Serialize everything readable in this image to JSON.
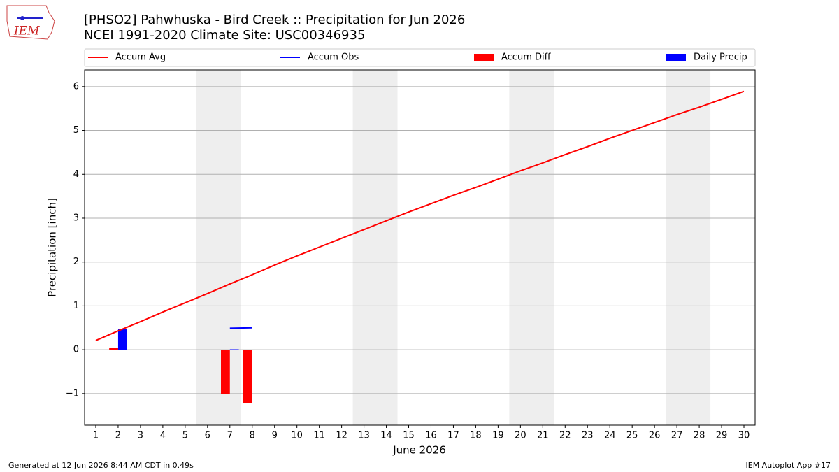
{
  "logo": {
    "text": "IEM"
  },
  "chart_data": {
    "type": "bar",
    "title": "[PHSO2] Pahwhuska - Bird Creek :: Precipitation for Jun 2026",
    "subtitle": "NCEI 1991-2020 Climate Site: USC00346935",
    "y_label": "Precipitation [inch]",
    "x_label": "June 2026",
    "x": [
      1,
      2,
      3,
      4,
      5,
      6,
      7,
      8,
      9,
      10,
      11,
      12,
      13,
      14,
      15,
      16,
      17,
      18,
      19,
      20,
      21,
      22,
      23,
      24,
      25,
      26,
      27,
      28,
      29,
      30
    ],
    "xlim": [
      0.5,
      30.5
    ],
    "xticks": [
      1,
      2,
      3,
      4,
      5,
      6,
      7,
      8,
      9,
      10,
      11,
      12,
      13,
      14,
      15,
      16,
      17,
      18,
      19,
      20,
      21,
      22,
      23,
      24,
      25,
      26,
      27,
      28,
      29,
      30
    ],
    "ylim": [
      -1.72,
      6.38
    ],
    "yticks": [
      {
        "value": -1,
        "label": "−1"
      },
      0,
      1,
      2,
      3,
      4,
      5,
      6
    ],
    "grid": true,
    "weekend_shading": [
      [
        5.5,
        7.5
      ],
      [
        12.5,
        14.5
      ],
      [
        19.5,
        21.5
      ],
      [
        26.5,
        28.5
      ]
    ],
    "series": [
      {
        "name": "Accum Avg",
        "type": "line",
        "color": "#ff0000",
        "values": [
          0.21,
          0.43,
          0.64,
          0.86,
          1.07,
          1.28,
          1.5,
          1.71,
          1.93,
          2.14,
          2.34,
          2.54,
          2.74,
          2.94,
          3.14,
          3.33,
          3.52,
          3.7,
          3.89,
          4.08,
          4.26,
          4.45,
          4.63,
          4.82,
          5.0,
          5.18,
          5.36,
          5.53,
          5.71,
          5.89
        ]
      },
      {
        "name": "Accum Obs",
        "type": "line",
        "color": "#0000ff",
        "values": [
          null,
          null,
          null,
          null,
          null,
          null,
          0.49,
          0.5,
          null,
          null,
          null,
          null,
          null,
          null,
          null,
          null,
          null,
          null,
          null,
          null,
          null,
          null,
          null,
          null,
          null,
          null,
          null,
          null,
          null,
          null
        ]
      },
      {
        "name": "Accum Diff",
        "type": "bar",
        "color": "#ff0000",
        "values": [
          null,
          0.04,
          null,
          null,
          null,
          null,
          -1.01,
          -1.21,
          null,
          null,
          null,
          null,
          null,
          null,
          null,
          null,
          null,
          null,
          null,
          null,
          null,
          null,
          null,
          null,
          null,
          null,
          null,
          null,
          null,
          null
        ]
      },
      {
        "name": "Daily Precip",
        "type": "bar",
        "color": "#0000ff",
        "values": [
          null,
          0.47,
          null,
          null,
          null,
          null,
          0.01,
          null,
          null,
          null,
          null,
          null,
          null,
          null,
          null,
          null,
          null,
          null,
          null,
          null,
          null,
          null,
          null,
          null,
          null,
          null,
          null,
          null,
          null,
          null
        ]
      }
    ],
    "footer_left": "Generated at 12 Jun 2026 8:44 AM CDT in 0.49s",
    "footer_right": "IEM Autoplot App #17"
  }
}
